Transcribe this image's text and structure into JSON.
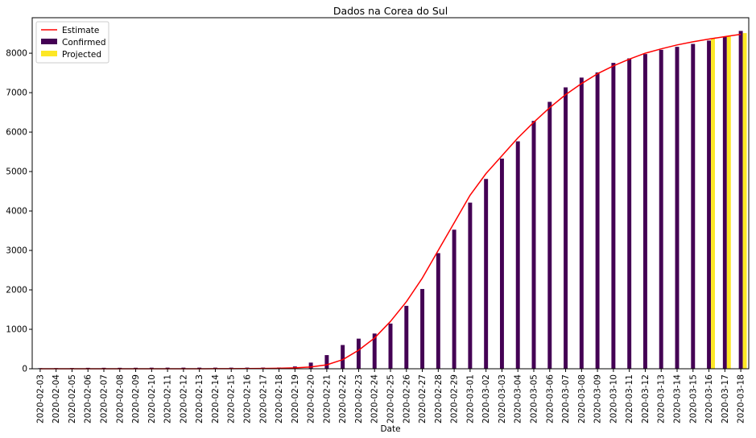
{
  "chart_data": {
    "type": "bar",
    "title": "Dados na Corea do Sul",
    "xlabel": "Date",
    "ylabel": "",
    "ylim": [
      0,
      8900
    ],
    "yticks": [
      0,
      1000,
      2000,
      3000,
      4000,
      5000,
      6000,
      7000,
      8000
    ],
    "grid": false,
    "legend_position": "top-left",
    "legend": [
      "Estimate",
      "Confirmed",
      "Projected"
    ],
    "categories": [
      "2020-02-03",
      "2020-02-04",
      "2020-02-05",
      "2020-02-06",
      "2020-02-07",
      "2020-02-08",
      "2020-02-09",
      "2020-02-10",
      "2020-02-11",
      "2020-02-12",
      "2020-02-13",
      "2020-02-14",
      "2020-02-15",
      "2020-02-16",
      "2020-02-17",
      "2020-02-18",
      "2020-02-19",
      "2020-02-20",
      "2020-02-21",
      "2020-02-22",
      "2020-02-23",
      "2020-02-24",
      "2020-02-25",
      "2020-02-26",
      "2020-02-27",
      "2020-02-28",
      "2020-02-29",
      "2020-03-01",
      "2020-03-02",
      "2020-03-03",
      "2020-03-04",
      "2020-03-05",
      "2020-03-06",
      "2020-03-07",
      "2020-03-08",
      "2020-03-09",
      "2020-03-10",
      "2020-03-11",
      "2020-03-12",
      "2020-03-13",
      "2020-03-14",
      "2020-03-15",
      "2020-03-16",
      "2020-03-17",
      "2020-03-18"
    ],
    "series": [
      {
        "name": "Confirmed",
        "kind": "bar",
        "color": "#440154",
        "values": [
          15,
          16,
          18,
          23,
          24,
          24,
          25,
          27,
          28,
          28,
          28,
          28,
          28,
          29,
          30,
          31,
          58,
          156,
          346,
          602,
          763,
          893,
          1146,
          1595,
          2022,
          2931,
          3526,
          4212,
          4812,
          5328,
          5766,
          6284,
          6767,
          7134,
          7382,
          7513,
          7755,
          7869,
          7979,
          8086,
          8162,
          8236,
          8320,
          8413,
          8565
        ]
      },
      {
        "name": "Projected",
        "kind": "bar",
        "color": "#fde725",
        "values": [
          null,
          null,
          null,
          null,
          null,
          null,
          null,
          null,
          null,
          null,
          null,
          null,
          null,
          null,
          null,
          null,
          null,
          null,
          null,
          null,
          null,
          null,
          null,
          null,
          null,
          null,
          null,
          null,
          null,
          null,
          null,
          null,
          null,
          null,
          null,
          null,
          null,
          null,
          null,
          null,
          null,
          null,
          8380,
          8440,
          8510
        ]
      },
      {
        "name": "Estimate",
        "kind": "line",
        "color": "#ff0000",
        "values": [
          0,
          0,
          0,
          0,
          0,
          0,
          0,
          0,
          0,
          0,
          1,
          2,
          3,
          5,
          8,
          13,
          22,
          45,
          100,
          230,
          470,
          780,
          1200,
          1700,
          2300,
          3000,
          3700,
          4400,
          4950,
          5400,
          5850,
          6250,
          6620,
          6950,
          7230,
          7480,
          7680,
          7850,
          8000,
          8110,
          8210,
          8290,
          8360,
          8420,
          8480
        ]
      }
    ]
  }
}
